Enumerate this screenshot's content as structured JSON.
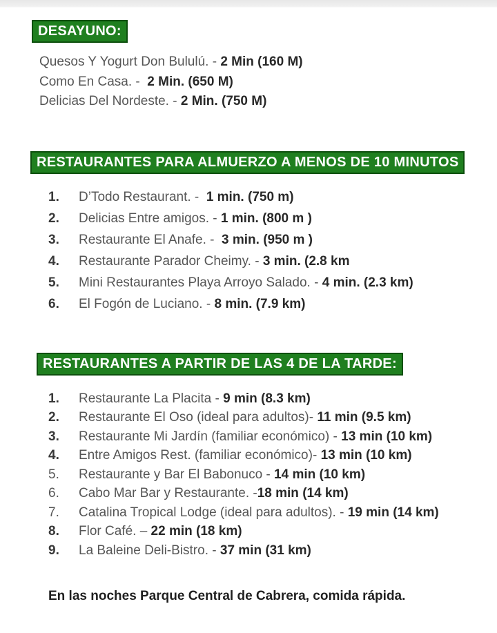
{
  "page": {
    "background": "#ffffff",
    "top_edge_bar_color": "#ededed"
  },
  "colors": {
    "header_background": "#1f7f1f",
    "header_border": "#0d4f0d",
    "header_text": "#ffffff",
    "name_text": "#565656",
    "time_text": "#282828",
    "footer_text": "#1f1f1f"
  },
  "sections": [
    {
      "title": "DESAYUNO:",
      "items": [
        {
          "name": "Quesos Y Yogurt Don Bululú. - ",
          "time": "2 Min (160 M)"
        },
        {
          "name": "Como En Casa. -  ",
          "time": "2 Min. (650 M)"
        },
        {
          "name": "Delicias Del Nordeste. - ",
          "time": "2 Min. (750 M)"
        }
      ]
    },
    {
      "title": "RESTAURANTES PARA ALMUERZO A MENOS DE 10 MINUTOS",
      "items": [
        {
          "number": "1.",
          "name": "D’Todo Restaurant. -  ",
          "time": "1 min. (750 m)"
        },
        {
          "number": "2.",
          "name": "Delicias Entre amigos. - ",
          "time": "1 min. (800 m )"
        },
        {
          "number": "3.",
          "name": "Restaurante El Anafe. -  ",
          "time": "3 min. (950 m )"
        },
        {
          "number": "4.",
          "name": "Restaurante Parador Cheimy. - ",
          "time": "3 min. (2.8 km"
        },
        {
          "number": "5.",
          "name": "Mini Restaurantes Playa Arroyo Salado. - ",
          "time": "4 min. (2.3 km)"
        },
        {
          "number": "6.",
          "name": "El Fogón de Luciano. - ",
          "time": "8 min. (7.9 km)"
        }
      ]
    },
    {
      "title": "RESTAURANTES A PARTIR DE LAS 4 DE LA TARDE:",
      "items": [
        {
          "number": "1.",
          "name": "Restaurante La Placita - ",
          "time": "9 min (8.3 km)"
        },
        {
          "number": "2.",
          "name": "Restaurante El Oso (ideal para adultos)- ",
          "time": "11 min (9.5 km)"
        },
        {
          "number": "3.",
          "name": "Restaurante Mi Jardín (familiar económico) - ",
          "time": "13 min (10 km)"
        },
        {
          "number": "4.",
          "name": "Entre Amigos Rest. (familiar económico)- ",
          "time": "13 min (10 km)"
        },
        {
          "number": "5.",
          "name": "Restaurante y Bar El Babonuco - ",
          "time": "14 min (10 km)"
        },
        {
          "number": "6.",
          "name": "Cabo Mar Bar y Restaurante. -",
          "time": "18 min (14 km)"
        },
        {
          "number": "7.",
          "name": "Catalina Tropical Lodge (ideal para adultos). - ",
          "time": "19 min (14 km)"
        },
        {
          "number": "8.",
          "name": "Flor Café. – ",
          "time": "22 min (18 km)"
        },
        {
          "number": "9.",
          "name": "La Baleine Deli-Bistro. - ",
          "time": "37 min (31 km)"
        }
      ]
    }
  ],
  "footer": {
    "text": "En las noches Parque Central de Cabrera, comida rápida."
  }
}
